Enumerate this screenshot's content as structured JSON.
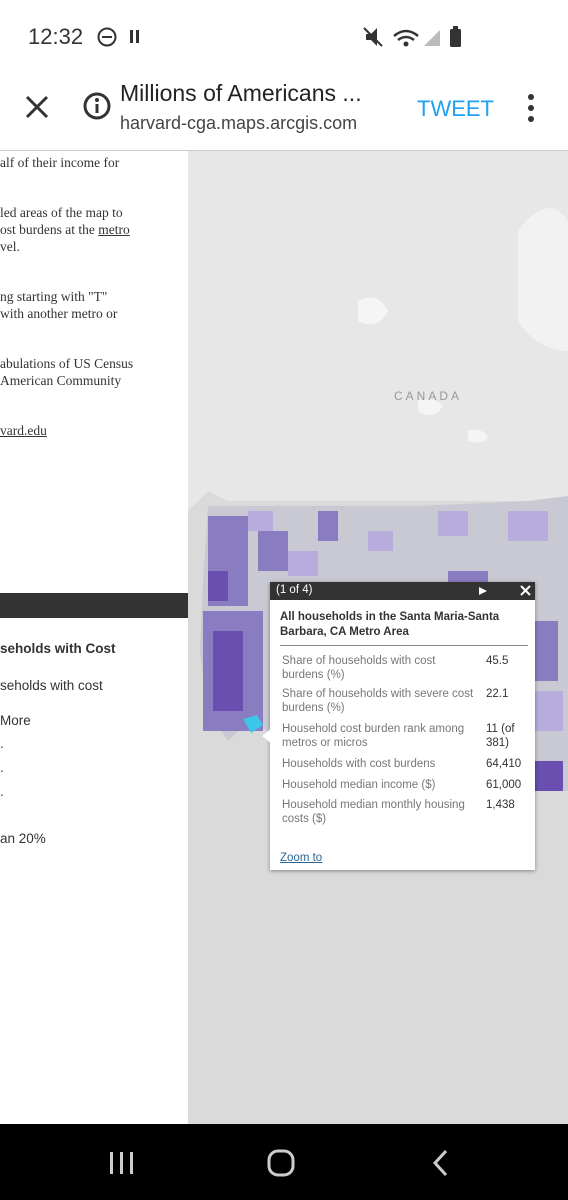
{
  "status_bar": {
    "time": "12:32"
  },
  "app_bar": {
    "title": "Millions of Americans ...",
    "url": "harvard-cga.maps.arcgis.com",
    "action": "TWEET"
  },
  "side_panel": {
    "lines": [
      "alf of their income for",
      "led areas of the map to",
      "ost burdens at the ",
      "vel.",
      "ng starting with \"T\"",
      "with another metro or",
      "abulations of US Census",
      "American Community",
      "vard.edu"
    ],
    "link_metro": "metro",
    "legend_title": "seholds with Cost",
    "legend_items": [
      "seholds with cost",
      "More",
      ".",
      ".",
      ".",
      "an 20%"
    ]
  },
  "map": {
    "label": "CANADA"
  },
  "popup": {
    "counter": "(1 of 4)",
    "title": "All households in the Santa Maria-Santa Barbara, CA Metro Area",
    "rows": [
      {
        "label": "Share of households with cost burdens (%)",
        "value": "45.5"
      },
      {
        "label": "Share of households with severe cost burdens (%)",
        "value": "22.1"
      },
      {
        "label": "Household cost burden rank among metros or micros",
        "value": "11 (of 381)"
      },
      {
        "label": "Households with cost burdens",
        "value": "64,410"
      },
      {
        "label": "Household median income ($)",
        "value": "61,000"
      },
      {
        "label": "Household median monthly housing costs ($)",
        "value": "1,438"
      }
    ],
    "zoom": "Zoom to"
  }
}
